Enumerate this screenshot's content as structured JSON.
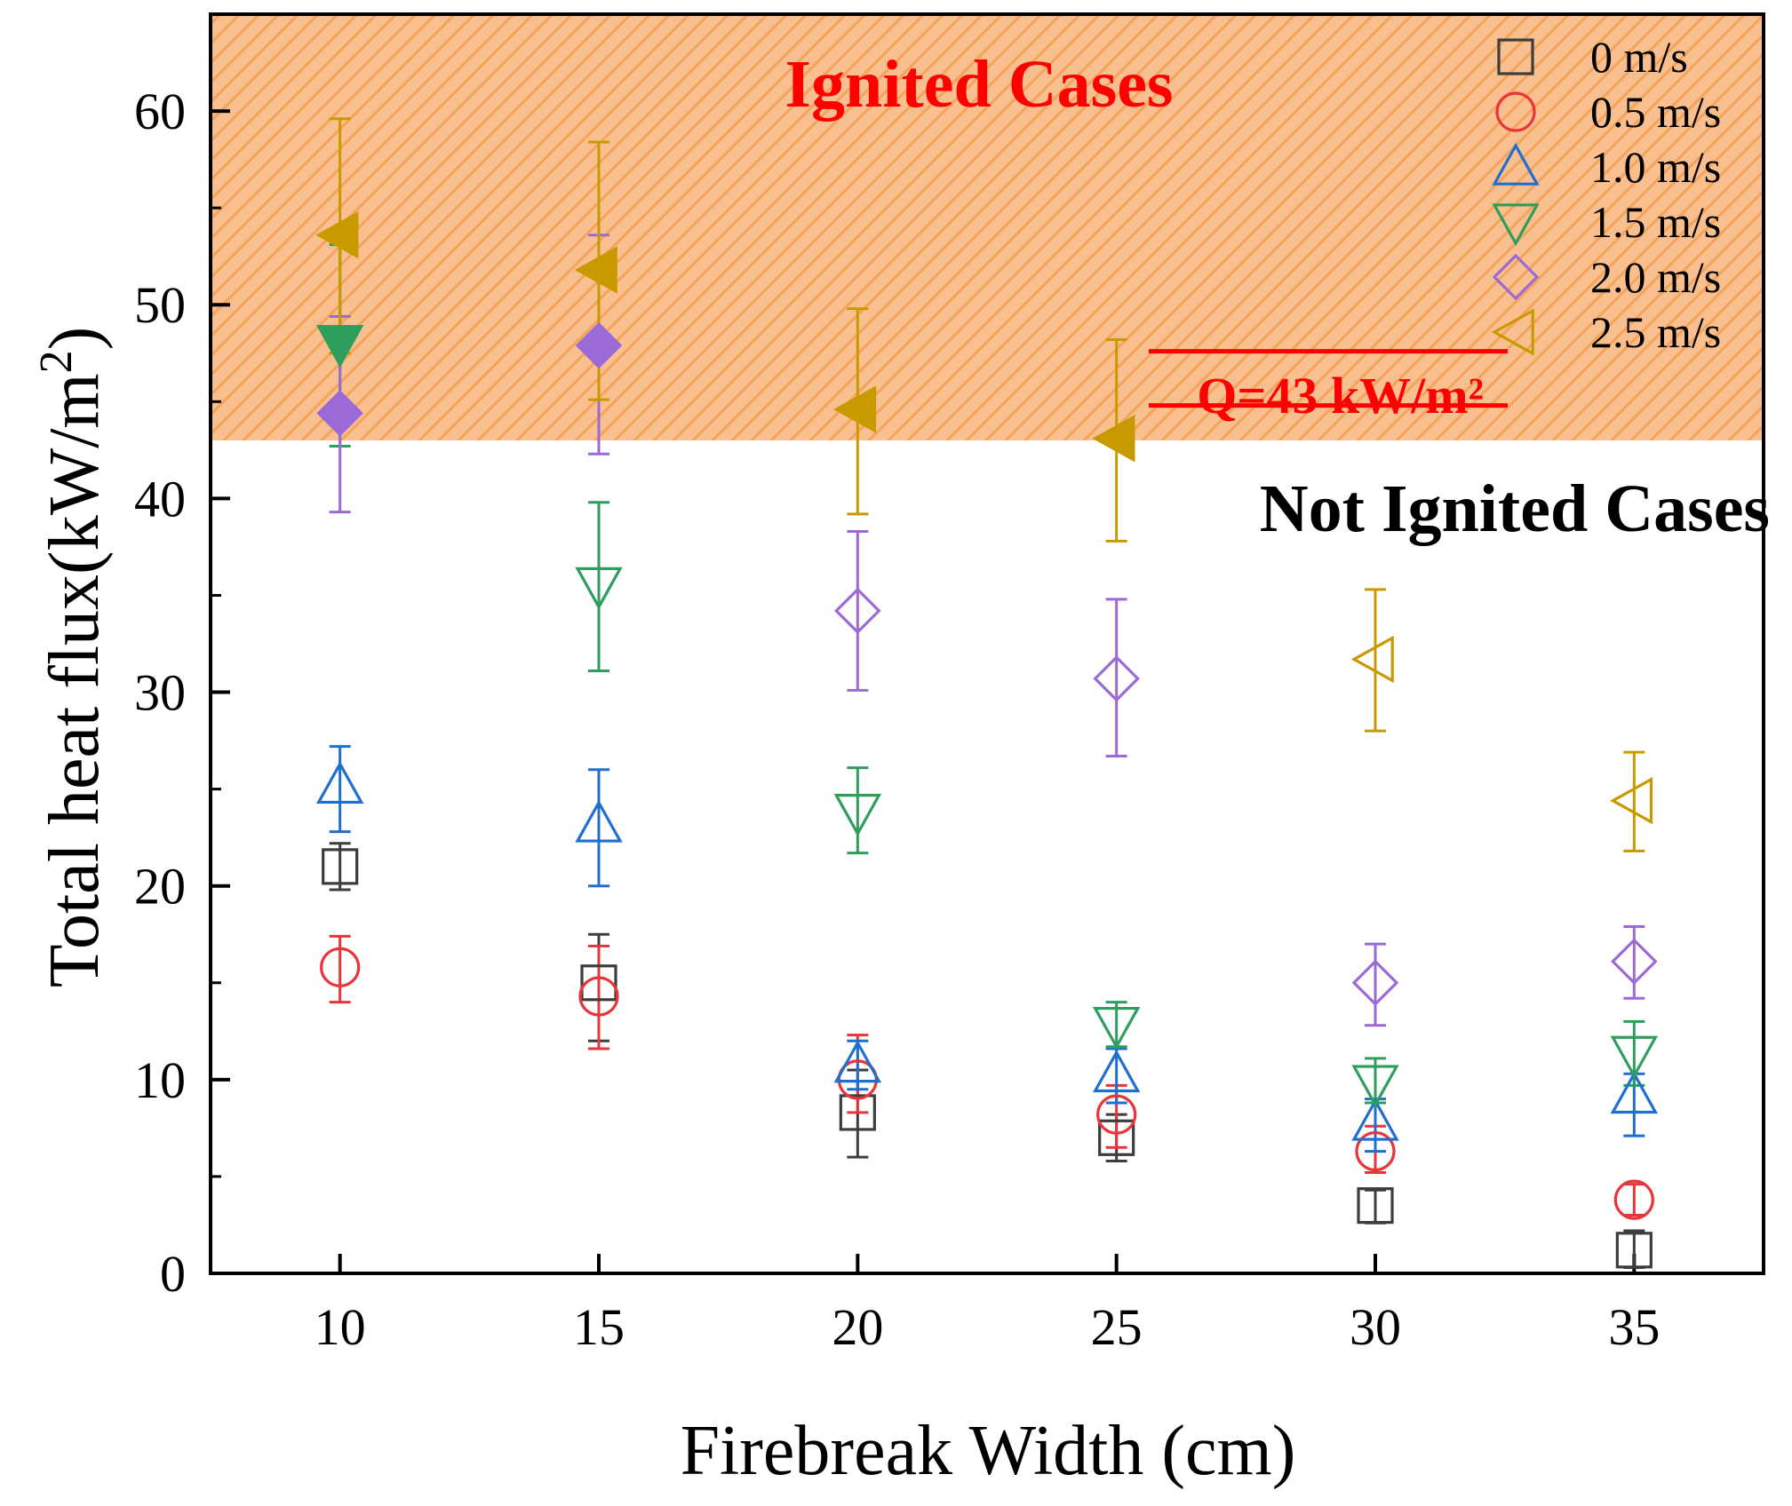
{
  "chart_data": {
    "type": "scatter",
    "title": "",
    "xlabel": "Firebreak Width (cm)",
    "ylabel_main": "Total heat flux(kW/m",
    "ylabel_sup": "2",
    "ylabel_close": ")",
    "xlim": [
      7.5,
      37.5
    ],
    "ylim": [
      0,
      65
    ],
    "x_ticks": [
      10,
      15,
      20,
      25,
      30,
      35
    ],
    "y_ticks": [
      0,
      10,
      20,
      30,
      40,
      50,
      60
    ],
    "threshold": {
      "value": 43,
      "label": "Q=43 kW/m²",
      "region_above_label": "Ignited Cases",
      "region_below_label": "Not Ignited Cases",
      "region_color": "#f9bf8f",
      "hatch_color": "#f5a45c",
      "label_color": "#ff0000"
    },
    "legend": {
      "position": "top-right",
      "entries": [
        "0 m/s",
        "0.5 m/s",
        "1.0 m/s",
        "1.5 m/s",
        "2.0 m/s",
        "2.5 m/s"
      ]
    },
    "x": [
      10,
      15,
      20,
      25,
      30,
      35
    ],
    "series": [
      {
        "name": "0 m/s",
        "marker": "square",
        "color": "#3d3d3d",
        "values": [
          21.0,
          15.0,
          8.3,
          7.0,
          3.5,
          1.2
        ],
        "err_low": [
          19.8,
          12.0,
          6.0,
          5.8,
          2.6,
          0.3
        ],
        "err_high": [
          22.2,
          17.5,
          10.5,
          8.2,
          4.3,
          2.2
        ]
      },
      {
        "name": "0.5 m/s",
        "marker": "circle",
        "color": "#e8353a",
        "values": [
          15.8,
          14.3,
          10.0,
          8.2,
          6.3,
          3.8
        ],
        "err_low": [
          14.0,
          11.6,
          8.3,
          6.5,
          5.2,
          3.0
        ],
        "err_high": [
          17.4,
          16.9,
          12.3,
          9.7,
          7.6,
          4.6
        ]
      },
      {
        "name": "1.0 m/s",
        "marker": "triangle-up",
        "color": "#1f6fd1",
        "values": [
          25.2,
          23.2,
          10.8,
          10.3,
          7.8,
          9.2
        ],
        "err_low": [
          22.8,
          20.0,
          9.5,
          8.8,
          6.3,
          7.1
        ],
        "err_high": [
          27.2,
          26.0,
          12.0,
          11.6,
          9.0,
          10.3
        ]
      },
      {
        "name": "1.5 m/s",
        "marker": "triangle-down",
        "color": "#2e9e5e",
        "values": [
          48.0,
          35.5,
          23.8,
          12.8,
          9.8,
          11.3
        ],
        "err_low": [
          42.7,
          31.1,
          21.7,
          11.7,
          8.8,
          9.7
        ],
        "err_high": [
          53.1,
          39.8,
          26.1,
          14.0,
          11.1,
          13.0
        ]
      },
      {
        "name": "2.0 m/s",
        "marker": "diamond",
        "color": "#9b6ad6",
        "values": [
          44.4,
          47.9,
          34.2,
          30.7,
          15.0,
          16.1
        ],
        "err_low": [
          39.3,
          42.3,
          30.1,
          26.7,
          12.8,
          14.2
        ],
        "err_high": [
          49.4,
          53.6,
          38.3,
          34.8,
          17.0,
          17.9
        ],
        "filled": [
          true,
          true,
          false,
          false,
          false,
          false
        ]
      },
      {
        "name": "2.5 m/s",
        "marker": "triangle-left",
        "color": "#c89a00",
        "values": [
          53.6,
          51.8,
          44.6,
          43.1,
          31.7,
          24.4
        ],
        "err_low": [
          47.5,
          45.1,
          39.2,
          37.8,
          28.0,
          21.8
        ],
        "err_high": [
          59.6,
          58.4,
          49.8,
          48.2,
          35.3,
          26.9
        ],
        "filled": [
          true,
          true,
          true,
          true,
          false,
          false
        ]
      }
    ]
  }
}
